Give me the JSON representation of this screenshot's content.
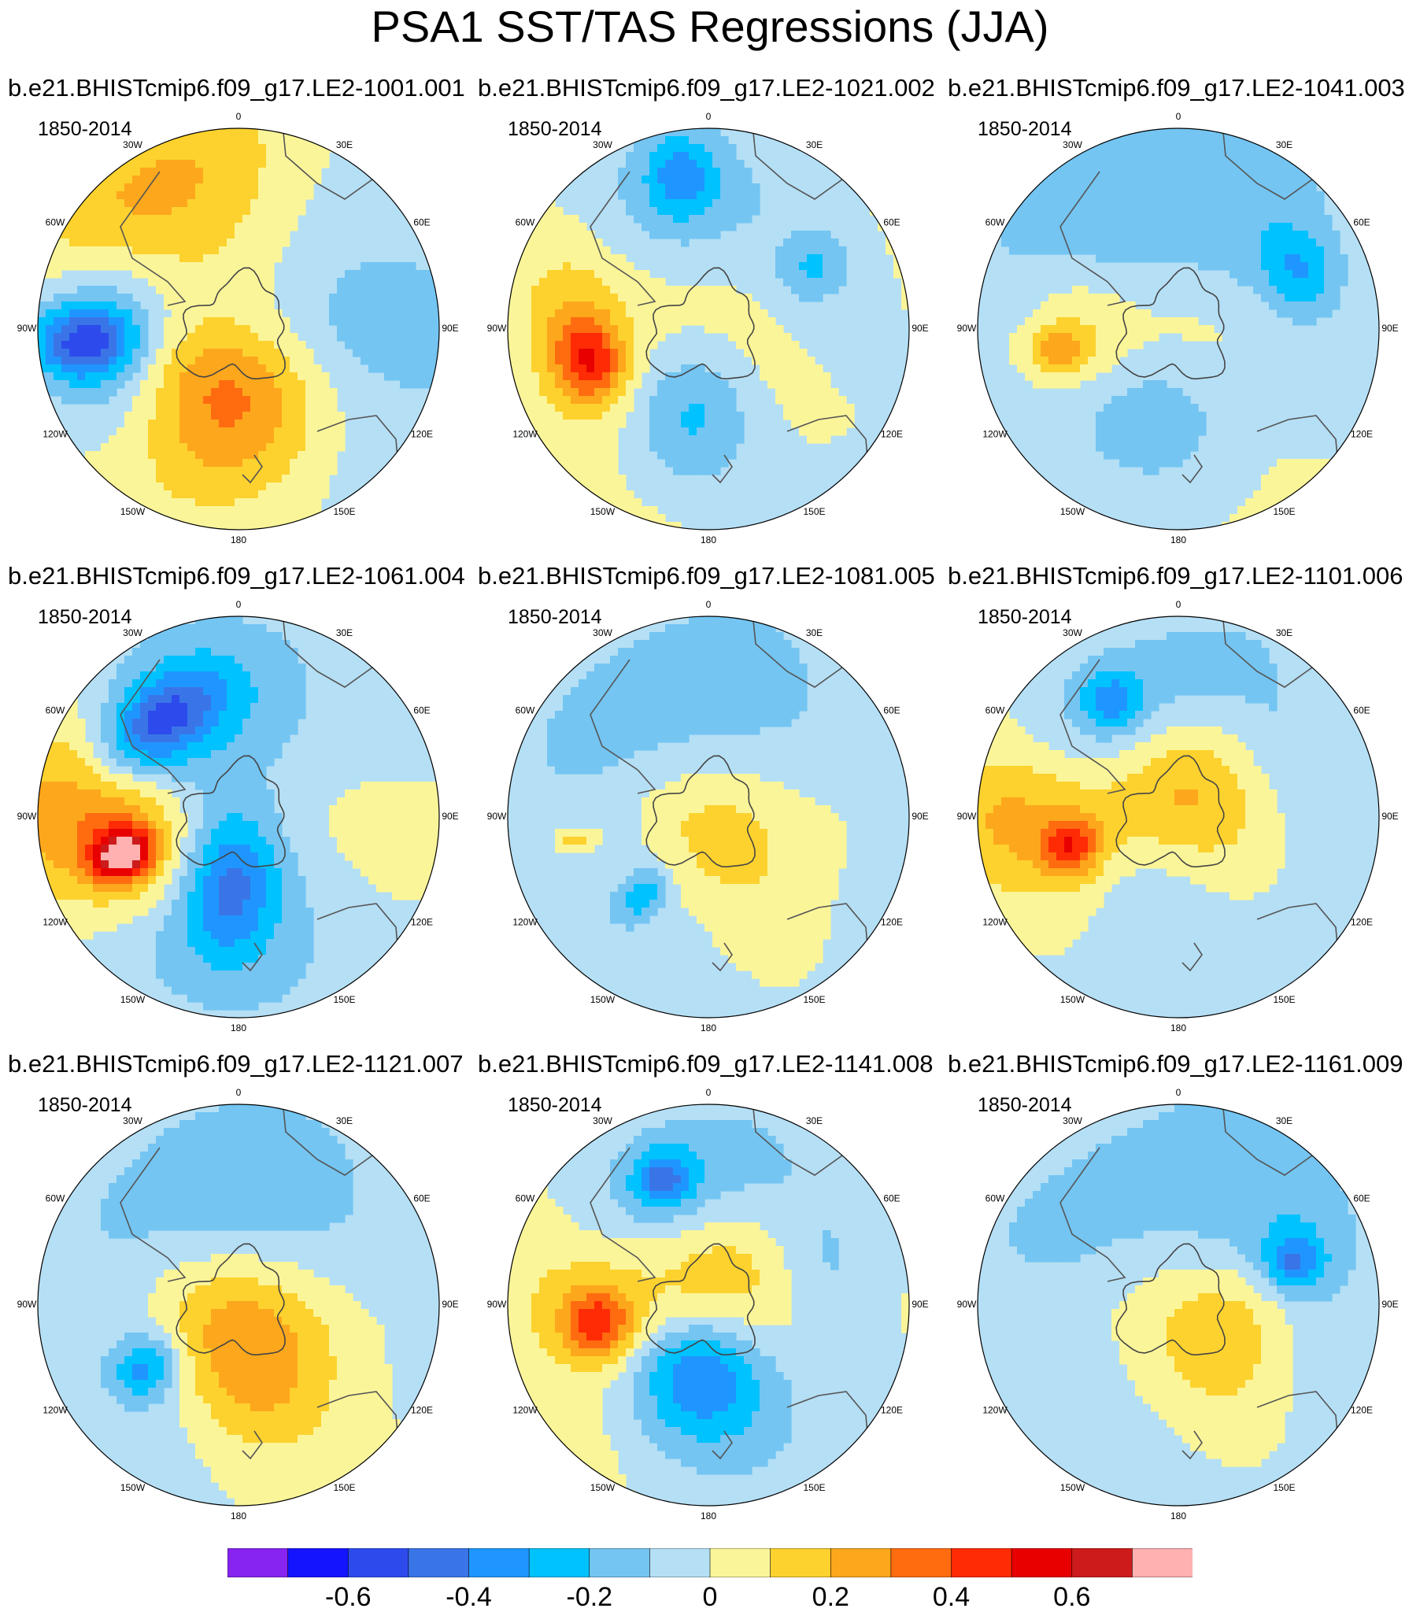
{
  "title": "PSA1 SST/TAS Regressions (JJA)",
  "period": "1850-2014",
  "longitude_labels": [
    "0",
    "30E",
    "60E",
    "90E",
    "120E",
    "150E",
    "180",
    "150W",
    "120W",
    "90W",
    "60W",
    "30W"
  ],
  "panels": [
    {
      "run": "b.e21.BHISTcmip6.f09_g17.LE2-1001.001",
      "pattern": [
        [
          -20,
          60,
          0.32,
          0.5,
          0.2
        ],
        [
          -30,
          80,
          0.22,
          0.6,
          0.12
        ],
        [
          -100,
          55,
          0.26,
          0.3,
          -0.26
        ],
        [
          -95,
          70,
          0.16,
          0.12,
          -0.4
        ],
        [
          -110,
          35,
          0.22,
          0.2,
          0.1
        ],
        [
          -160,
          30,
          0.45,
          0.4,
          0.22
        ],
        [
          180,
          30,
          0.3,
          0.3,
          0.2
        ],
        [
          150,
          55,
          0.6,
          0.7,
          -0.02
        ],
        [
          50,
          40,
          0.6,
          0.9,
          -0.12
        ],
        [
          0,
          0,
          0.2,
          1,
          -0.08
        ]
      ]
    },
    {
      "run": "b.e21.BHISTcmip6.f09_g17.LE2-1021.002",
      "pattern": [
        [
          -20,
          60,
          0.3,
          0.4,
          -0.15
        ],
        [
          -10,
          70,
          0.15,
          0.12,
          -0.25
        ],
        [
          -95,
          60,
          0.24,
          0.4,
          0.25
        ],
        [
          -105,
          55,
          0.12,
          0.15,
          0.4
        ],
        [
          -150,
          45,
          0.3,
          0.6,
          -0.18
        ],
        [
          -175,
          35,
          0.25,
          0.2,
          -0.18
        ],
        [
          70,
          50,
          0.3,
          0.4,
          -0.2
        ],
        [
          60,
          55,
          0.12,
          0.1,
          -0.15
        ],
        [
          125,
          30,
          0.4,
          0.7,
          0.15
        ],
        [
          0,
          10,
          0.3,
          0.6,
          0.04
        ]
      ]
    },
    {
      "run": "b.e21.BHISTcmip6.f09_g17.LE2-1041.003",
      "pattern": [
        [
          -20,
          60,
          0.35,
          0.6,
          -0.18
        ],
        [
          70,
          55,
          0.3,
          0.5,
          -0.15
        ],
        [
          65,
          60,
          0.12,
          0.15,
          -0.2
        ],
        [
          -95,
          45,
          0.2,
          0.25,
          0.15
        ],
        [
          -100,
          55,
          0.1,
          0.08,
          0.22
        ],
        [
          -135,
          50,
          0.3,
          0.5,
          -0.1
        ],
        [
          -170,
          40,
          0.25,
          0.3,
          -0.14
        ],
        [
          140,
          40,
          0.5,
          0.8,
          0.06
        ],
        [
          0,
          0,
          0.2,
          1,
          0.05
        ]
      ]
    },
    {
      "run": "b.e21.BHISTcmip6.f09_g17.LE2-1061.004",
      "pattern": [
        [
          -25,
          55,
          0.2,
          0.3,
          -0.2
        ],
        [
          -40,
          55,
          0.12,
          0.2,
          -0.3
        ],
        [
          -105,
          50,
          0.22,
          0.25,
          0.4
        ],
        [
          -108,
          55,
          0.1,
          0.08,
          0.6
        ],
        [
          -88,
          85,
          0.25,
          0.4,
          0.25
        ],
        [
          -150,
          40,
          0.4,
          0.6,
          -0.2
        ],
        [
          -175,
          30,
          0.25,
          0.15,
          -0.28
        ],
        [
          30,
          45,
          0.5,
          1.0,
          -0.1
        ],
        [
          100,
          60,
          0.4,
          0.4,
          0.1
        ],
        [
          0,
          0,
          0.2,
          1,
          0.04
        ]
      ]
    },
    {
      "run": "b.e21.BHISTcmip6.f09_g17.LE2-1081.005",
      "pattern": [
        [
          -30,
          55,
          0.35,
          0.6,
          -0.15
        ],
        [
          -100,
          60,
          0.08,
          0.05,
          0.22
        ],
        [
          -135,
          45,
          0.25,
          0.4,
          -0.18
        ],
        [
          -140,
          45,
          0.1,
          0.06,
          -0.22
        ],
        [
          -175,
          20,
          0.35,
          0.4,
          0.18
        ],
        [
          70,
          50,
          0.35,
          0.6,
          -0.08
        ],
        [
          0,
          0,
          0.2,
          1,
          0.05
        ]
      ]
    },
    {
      "run": "b.e21.BHISTcmip6.f09_g17.LE2-1101.006",
      "pattern": [
        [
          -25,
          55,
          0.25,
          0.5,
          -0.2
        ],
        [
          -30,
          60,
          0.1,
          0.1,
          -0.25
        ],
        [
          0,
          15,
          0.3,
          0.3,
          0.25
        ],
        [
          -100,
          55,
          0.24,
          0.4,
          0.25
        ],
        [
          -105,
          50,
          0.1,
          0.1,
          0.35
        ],
        [
          -90,
          85,
          0.2,
          0.3,
          0.18
        ],
        [
          -150,
          40,
          0.4,
          0.6,
          -0.18
        ],
        [
          70,
          55,
          0.25,
          0.4,
          -0.18
        ],
        [
          120,
          40,
          0.3,
          0.6,
          0.1
        ],
        [
          0,
          0,
          0.2,
          1,
          0.04
        ]
      ]
    },
    {
      "run": "b.e21.BHISTcmip6.f09_g17.LE2-1121.007",
      "pattern": [
        [
          -20,
          55,
          0.3,
          0.5,
          -0.15
        ],
        [
          -125,
          50,
          0.25,
          0.45,
          -0.2
        ],
        [
          -125,
          50,
          0.12,
          0.1,
          -0.28
        ],
        [
          -160,
          25,
          0.4,
          0.5,
          0.15
        ],
        [
          170,
          25,
          0.3,
          0.3,
          0.2
        ],
        [
          60,
          45,
          0.4,
          0.6,
          -0.1
        ],
        [
          0,
          0,
          0.2,
          1,
          0.04
        ]
      ]
    },
    {
      "run": "b.e21.BHISTcmip6.f09_g17.LE2-1141.008",
      "pattern": [
        [
          -20,
          55,
          0.25,
          0.45,
          -0.25
        ],
        [
          -20,
          60,
          0.1,
          0.1,
          -0.3
        ],
        [
          -95,
          55,
          0.3,
          0.5,
          0.22
        ],
        [
          -100,
          50,
          0.12,
          0.12,
          0.38
        ],
        [
          -155,
          40,
          0.3,
          0.5,
          -0.22
        ],
        [
          -175,
          30,
          0.2,
          0.2,
          -0.25
        ],
        [
          15,
          20,
          0.3,
          0.3,
          0.18
        ],
        [
          70,
          55,
          0.2,
          0.3,
          -0.15
        ],
        [
          0,
          0,
          0.2,
          1,
          0.04
        ]
      ]
    },
    {
      "run": "b.e21.BHISTcmip6.f09_g17.LE2-1161.009",
      "pattern": [
        [
          -30,
          55,
          0.4,
          0.7,
          -0.12
        ],
        [
          70,
          55,
          0.3,
          0.5,
          -0.2
        ],
        [
          70,
          55,
          0.1,
          0.1,
          -0.3
        ],
        [
          -130,
          45,
          0.3,
          0.5,
          -0.1
        ],
        [
          110,
          30,
          0.25,
          0.3,
          0.15
        ],
        [
          -170,
          25,
          0.3,
          0.4,
          0.1
        ],
        [
          0,
          0,
          0.2,
          1,
          0.06
        ]
      ]
    }
  ],
  "colorbar": {
    "levels": [
      -0.7,
      -0.6,
      -0.5,
      -0.4,
      -0.3,
      -0.2,
      -0.1,
      0,
      0.1,
      0.2,
      0.3,
      0.4,
      0.5,
      0.6,
      0.7
    ],
    "colors": [
      "#8724f0",
      "#1414ff",
      "#2d4bec",
      "#3a75e8",
      "#1f96ff",
      "#00c2ff",
      "#74c5f2",
      "#b5dff5",
      "#fbf59a",
      "#fdd22e",
      "#fda71c",
      "#ff6c10",
      "#ff2b05",
      "#e80000",
      "#cd1b1b",
      "#ffb0b0"
    ],
    "tick_labels": [
      "-0.6",
      "-0.4",
      "-0.2",
      "0",
      "0.2",
      "0.4",
      "0.6"
    ]
  }
}
